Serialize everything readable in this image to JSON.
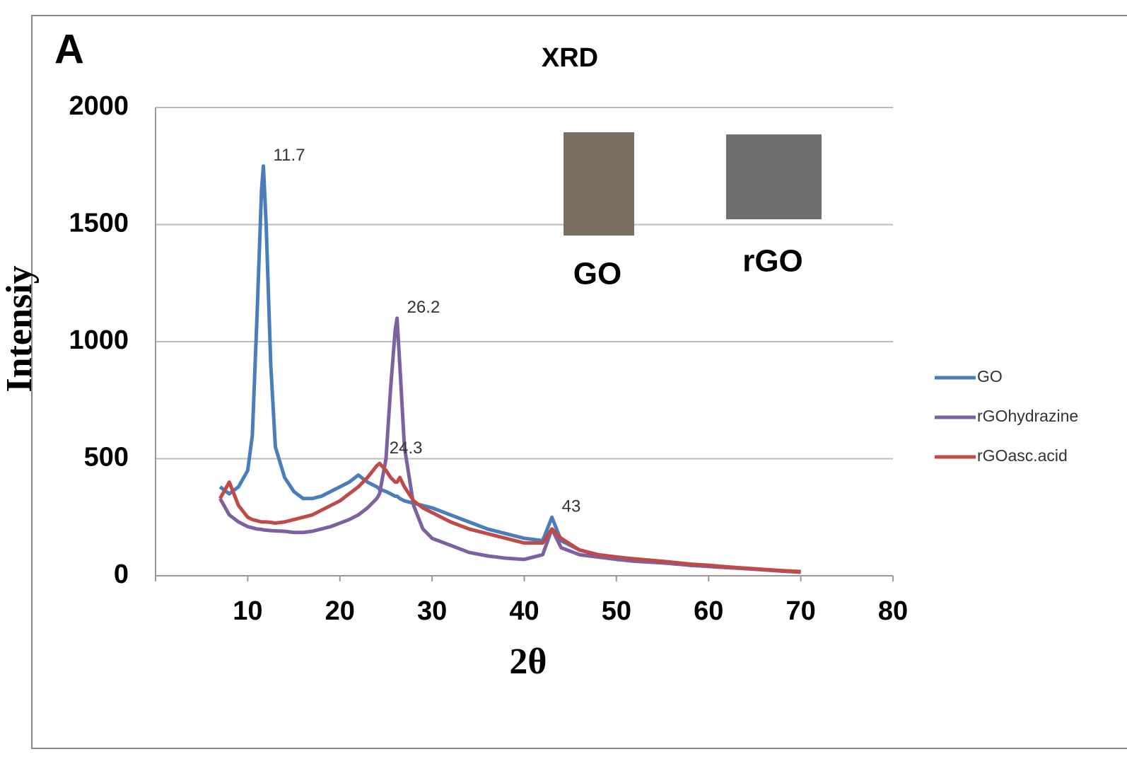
{
  "chart_data": {
    "type": "line",
    "panel_label": "A",
    "title": "XRD",
    "x_label": "2θ",
    "y_label": "Intensiy",
    "x": [
      7,
      8,
      9,
      10,
      10.5,
      11,
      11.5,
      11.7,
      12,
      12.5,
      13,
      14,
      15,
      16,
      17,
      18,
      19,
      20,
      21,
      22,
      23,
      24,
      24.3,
      25,
      25.5,
      26,
      26.2,
      26.5,
      27,
      28,
      29,
      30,
      32,
      34,
      36,
      38,
      40,
      42,
      43,
      44,
      46,
      48,
      50,
      52,
      55,
      58,
      60,
      62,
      65,
      68,
      70
    ],
    "series": [
      {
        "name": "GO",
        "color": "#4a7ebb",
        "values": [
          380,
          350,
          380,
          450,
          600,
          1100,
          1650,
          1750,
          1500,
          900,
          550,
          420,
          360,
          330,
          330,
          340,
          360,
          380,
          400,
          430,
          400,
          380,
          370,
          360,
          350,
          340,
          340,
          330,
          320,
          310,
          300,
          290,
          260,
          230,
          200,
          180,
          160,
          150,
          250,
          150,
          110,
          90,
          80,
          70,
          60,
          45,
          40,
          35,
          30,
          20,
          15
        ]
      },
      {
        "name": "rGOhydrazine",
        "color": "#7d60a0",
        "values": [
          330,
          260,
          230,
          210,
          205,
          200,
          198,
          196,
          195,
          193,
          192,
          190,
          185,
          185,
          190,
          200,
          210,
          225,
          240,
          260,
          290,
          330,
          350,
          500,
          800,
          1050,
          1100,
          900,
          550,
          300,
          200,
          160,
          130,
          100,
          85,
          75,
          70,
          90,
          200,
          120,
          90,
          80,
          70,
          62,
          55,
          45,
          40,
          35,
          28,
          20,
          15
        ]
      },
      {
        "name": "rGOasc.acid",
        "color": "#be4b48",
        "values": [
          330,
          400,
          300,
          250,
          240,
          235,
          230,
          230,
          230,
          228,
          225,
          230,
          240,
          250,
          260,
          280,
          300,
          320,
          350,
          380,
          420,
          470,
          480,
          450,
          420,
          400,
          400,
          420,
          380,
          320,
          290,
          270,
          230,
          200,
          180,
          160,
          140,
          140,
          200,
          160,
          110,
          90,
          80,
          72,
          62,
          50,
          45,
          38,
          30,
          22,
          18
        ]
      }
    ],
    "annotations": [
      11.7,
      26.2,
      24.3,
      43
    ],
    "inset_labels": [
      "GO",
      "rGO"
    ],
    "xlim": [
      0,
      80
    ],
    "xticks": [
      10,
      20,
      30,
      40,
      50,
      60,
      70,
      80
    ],
    "ylim": [
      0,
      2000
    ],
    "yticks": [
      0,
      500,
      1000,
      1500,
      2000
    ],
    "grid": true,
    "legend": "right"
  }
}
